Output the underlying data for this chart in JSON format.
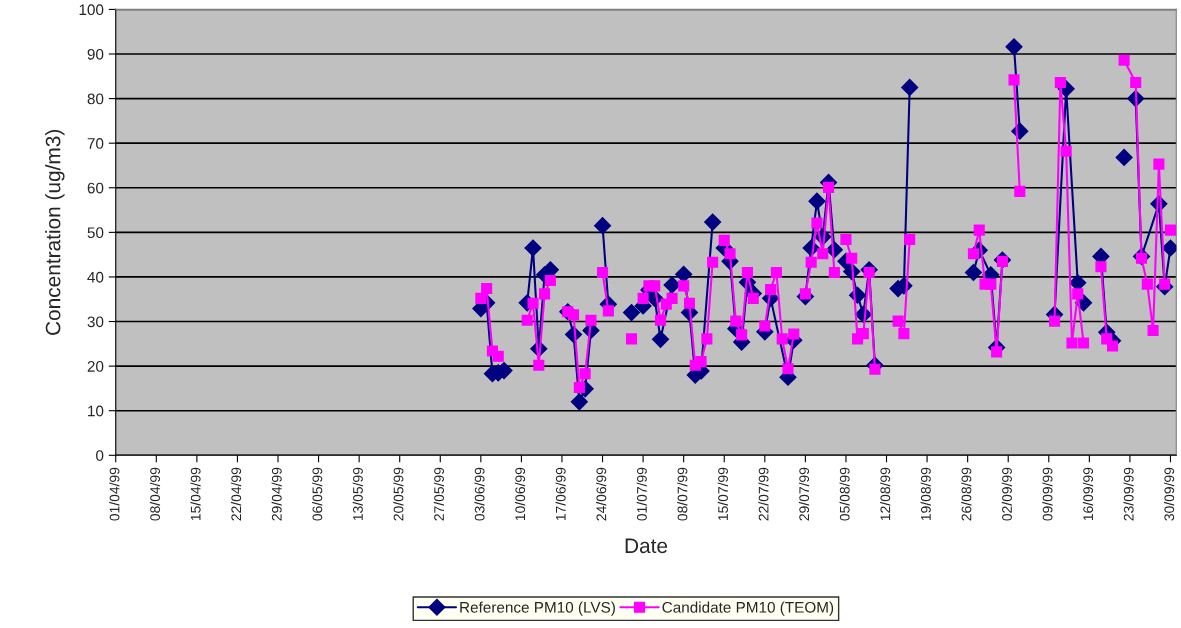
{
  "chart_data": {
    "type": "line",
    "xlabel": "Date",
    "ylabel": "Concentration (ug/m3)",
    "xlim": [
      "1999-04-01",
      "1999-10-01"
    ],
    "ylim": [
      0,
      100
    ],
    "yticks": [
      0,
      10,
      20,
      30,
      40,
      50,
      60,
      70,
      80,
      90,
      100
    ],
    "xticks": [
      {
        "value": "1999-04-01",
        "label": "01/04/99"
      },
      {
        "value": "1999-04-08",
        "label": "08/04/99"
      },
      {
        "value": "1999-04-15",
        "label": "15/04/99"
      },
      {
        "value": "1999-04-22",
        "label": "22/04/99"
      },
      {
        "value": "1999-04-29",
        "label": "29/04/99"
      },
      {
        "value": "1999-05-06",
        "label": "06/05/99"
      },
      {
        "value": "1999-05-13",
        "label": "13/05/99"
      },
      {
        "value": "1999-05-20",
        "label": "20/05/99"
      },
      {
        "value": "1999-05-27",
        "label": "27/05/99"
      },
      {
        "value": "1999-06-03",
        "label": "03/06/99"
      },
      {
        "value": "1999-06-10",
        "label": "10/06/99"
      },
      {
        "value": "1999-06-17",
        "label": "17/06/99"
      },
      {
        "value": "1999-06-24",
        "label": "24/06/99"
      },
      {
        "value": "1999-07-01",
        "label": "01/07/99"
      },
      {
        "value": "1999-07-08",
        "label": "08/07/99"
      },
      {
        "value": "1999-07-15",
        "label": "15/07/99"
      },
      {
        "value": "1999-07-22",
        "label": "22/07/99"
      },
      {
        "value": "1999-07-29",
        "label": "29/07/99"
      },
      {
        "value": "1999-08-05",
        "label": "05/08/99"
      },
      {
        "value": "1999-08-12",
        "label": "12/08/99"
      },
      {
        "value": "1999-08-19",
        "label": "19/08/99"
      },
      {
        "value": "1999-08-26",
        "label": "26/08/99"
      },
      {
        "value": "1999-09-02",
        "label": "02/09/99"
      },
      {
        "value": "1999-09-09",
        "label": "09/09/99"
      },
      {
        "value": "1999-09-16",
        "label": "16/09/99"
      },
      {
        "value": "1999-09-23",
        "label": "23/09/99"
      },
      {
        "value": "1999-09-30",
        "label": "30/09/99"
      }
    ],
    "grid": "y",
    "legend": "bottom",
    "series": [
      {
        "name": "Reference PM10 (LVS)",
        "color": "#000080",
        "marker": "diamond",
        "x": [
          "1999-06-03",
          "1999-06-04",
          "1999-06-05",
          "1999-06-06",
          "1999-06-07",
          "1999-06-08",
          "1999-06-11",
          "1999-06-12",
          "1999-06-13",
          "1999-06-14",
          "1999-06-15",
          "1999-06-16",
          "1999-06-18",
          "1999-06-19",
          "1999-06-20",
          "1999-06-21",
          "1999-06-22",
          "1999-06-23",
          "1999-06-24",
          "1999-06-25",
          "1999-06-26",
          "1999-06-29",
          "1999-06-30",
          "1999-07-01",
          "1999-07-02",
          "1999-07-03",
          "1999-07-04",
          "1999-07-06",
          "1999-07-07",
          "1999-07-08",
          "1999-07-09",
          "1999-07-10",
          "1999-07-11",
          "1999-07-13",
          "1999-07-14",
          "1999-07-15",
          "1999-07-16",
          "1999-07-17",
          "1999-07-18",
          "1999-07-19",
          "1999-07-20",
          "1999-07-21",
          "1999-07-22",
          "1999-07-23",
          "1999-07-26",
          "1999-07-27",
          "1999-07-28",
          "1999-07-29",
          "1999-07-30",
          "1999-07-31",
          "1999-08-01",
          "1999-08-02",
          "1999-08-03",
          "1999-08-04",
          "1999-08-05",
          "1999-08-06",
          "1999-08-07",
          "1999-08-08",
          "1999-08-09",
          "1999-08-10",
          "1999-08-11",
          "1999-08-14",
          "1999-08-15",
          "1999-08-16",
          "1999-08-17",
          "1999-08-27",
          "1999-08-28",
          "1999-08-30",
          "1999-08-31",
          "1999-09-01",
          "1999-09-02",
          "1999-09-03",
          "1999-09-04",
          "1999-09-05",
          "1999-09-10",
          "1999-09-12",
          "1999-09-14",
          "1999-09-15",
          "1999-09-16",
          "1999-09-18",
          "1999-09-19",
          "1999-09-20",
          "1999-09-21",
          "1999-09-22",
          "1999-09-23",
          "1999-09-24",
          "1999-09-25",
          "1999-09-28",
          "1999-09-29",
          "1999-09-30"
        ],
        "values": [
          32.9,
          34.2,
          18.3,
          18.5,
          19.0,
          null,
          34.2,
          46.5,
          23.9,
          40.5,
          41.6,
          null,
          32.2,
          27.1,
          12.0,
          14.9,
          28.0,
          null,
          51.5,
          33.9,
          null,
          32.0,
          null,
          33.5,
          37.1,
          35.2,
          26.0,
          38.2,
          null,
          40.6,
          32.0,
          18.0,
          18.9,
          52.3,
          null,
          46.5,
          43.5,
          28.4,
          25.4,
          38.8,
          36.3,
          null,
          27.7,
          35.2,
          17.5,
          25.8,
          null,
          35.6,
          46.5,
          57.0,
          49.0,
          61.2,
          46.1,
          null,
          43.5,
          41.2,
          35.9,
          31.6,
          41.6,
          20.2,
          null,
          37.4,
          38.0,
          82.5,
          null,
          41.0,
          46.0,
          40.5,
          24.2,
          43.8,
          null,
          91.6,
          72.7,
          null,
          31.6,
          82.2,
          38.7,
          34.2,
          null,
          44.6,
          27.6,
          25.7,
          null,
          66.8,
          null,
          80.0,
          44.6,
          56.4,
          37.8,
          46.5
        ]
      },
      {
        "name": "Candidate PM10 (TEOM)",
        "color": "#ff00ff",
        "marker": "square",
        "x": [
          "1999-06-03",
          "1999-06-04",
          "1999-06-05",
          "1999-06-06",
          "1999-06-07",
          "1999-06-11",
          "1999-06-12",
          "1999-06-13",
          "1999-06-14",
          "1999-06-15",
          "1999-06-16",
          "1999-06-18",
          "1999-06-19",
          "1999-06-20",
          "1999-06-21",
          "1999-06-22",
          "1999-06-23",
          "1999-06-24",
          "1999-06-25",
          "1999-06-26",
          "1999-06-29",
          "1999-06-30",
          "1999-07-01",
          "1999-07-02",
          "1999-07-03",
          "1999-07-04",
          "1999-07-05",
          "1999-07-06",
          "1999-07-07",
          "1999-07-08",
          "1999-07-09",
          "1999-07-10",
          "1999-07-11",
          "1999-07-12",
          "1999-07-13",
          "1999-07-14",
          "1999-07-15",
          "1999-07-16",
          "1999-07-17",
          "1999-07-18",
          "1999-07-19",
          "1999-07-20",
          "1999-07-21",
          "1999-07-22",
          "1999-07-23",
          "1999-07-24",
          "1999-07-25",
          "1999-07-26",
          "1999-07-27",
          "1999-07-28",
          "1999-07-29",
          "1999-07-30",
          "1999-07-31",
          "1999-08-01",
          "1999-08-02",
          "1999-08-03",
          "1999-08-04",
          "1999-08-05",
          "1999-08-06",
          "1999-08-07",
          "1999-08-08",
          "1999-08-09",
          "1999-08-10",
          "1999-08-11",
          "1999-08-14",
          "1999-08-15",
          "1999-08-16",
          "1999-08-17",
          "1999-08-27",
          "1999-08-28",
          "1999-08-29",
          "1999-08-30",
          "1999-08-31",
          "1999-09-01",
          "1999-09-02",
          "1999-09-03",
          "1999-09-04",
          "1999-09-05",
          "1999-09-10",
          "1999-09-11",
          "1999-09-12",
          "1999-09-13",
          "1999-09-14",
          "1999-09-15",
          "1999-09-16",
          "1999-09-18",
          "1999-09-19",
          "1999-09-20",
          "1999-09-21",
          "1999-09-22",
          "1999-09-24",
          "1999-09-25",
          "1999-09-26",
          "1999-09-27",
          "1999-09-28",
          "1999-09-29",
          "1999-09-29T12:00",
          "1999-09-30"
        ],
        "values": [
          35.2,
          37.4,
          23.4,
          22.2,
          null,
          30.3,
          34.1,
          20.2,
          36.2,
          39.2,
          null,
          32.2,
          31.5,
          15.2,
          18.3,
          30.3,
          null,
          41.0,
          32.4,
          null,
          26.1,
          null,
          35.2,
          38.0,
          38.0,
          30.3,
          33.9,
          35.2,
          null,
          38.0,
          34.1,
          20.2,
          21.0,
          26.1,
          43.3,
          null,
          48.2,
          45.2,
          30.1,
          27.0,
          41.0,
          35.2,
          null,
          29.0,
          37.2,
          41.0,
          26.1,
          19.4,
          27.2,
          null,
          36.2,
          43.3,
          52.1,
          45.2,
          60.1,
          41.0,
          null,
          48.4,
          44.2,
          26.1,
          27.3,
          41.0,
          19.3,
          null,
          30.1,
          27.3,
          48.4,
          null,
          45.2,
          50.5,
          38.4,
          38.4,
          23.2,
          43.5,
          null,
          84.2,
          59.2,
          null,
          30.1,
          83.6,
          68.2,
          25.2,
          36.2,
          25.2,
          null,
          42.3,
          26.1,
          24.5,
          null,
          88.6,
          83.6,
          44.2,
          38.4,
          28.0,
          65.3,
          38.4,
          null,
          50.5
        ]
      }
    ]
  }
}
